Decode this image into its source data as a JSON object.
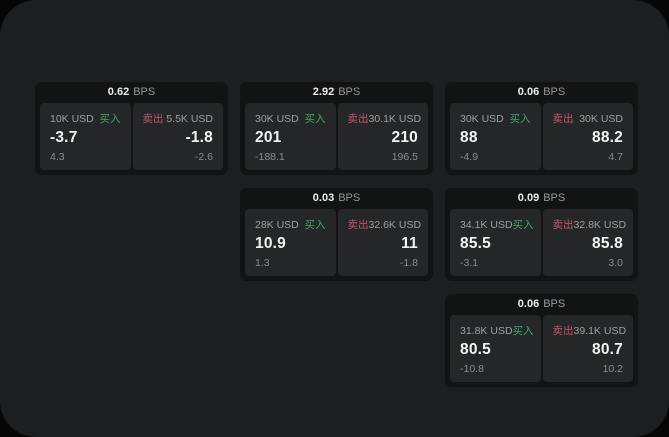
{
  "page": {
    "bps_suffix": "BPS",
    "buy_label": "买入",
    "sell_label": "卖出",
    "colors": {
      "buy": "#44a567",
      "sell": "#c4566a",
      "surface": "#1d1e1f",
      "card": "#121313",
      "panel": "#242628"
    }
  },
  "cards": [
    {
      "bps": "0.62",
      "row": 1,
      "col": 1,
      "buy": {
        "amount": "10K USD",
        "value": "-3.7",
        "sub": "4.3"
      },
      "sell": {
        "amount": "5.5K USD",
        "value": "-1.8",
        "sub": "-2.6"
      }
    },
    {
      "bps": "2.92",
      "row": 1,
      "col": 2,
      "buy": {
        "amount": "30K USD",
        "value": "201",
        "sub": "-188.1"
      },
      "sell": {
        "amount": "30.1K USD",
        "value": "210",
        "sub": "196.5"
      }
    },
    {
      "bps": "0.06",
      "row": 1,
      "col": 3,
      "buy": {
        "amount": "30K USD",
        "value": "88",
        "sub": "-4.9"
      },
      "sell": {
        "amount": "30K USD",
        "value": "88.2",
        "sub": "4.7"
      }
    },
    {
      "bps": "0.03",
      "row": 2,
      "col": 2,
      "buy": {
        "amount": "28K USD",
        "value": "10.9",
        "sub": "1.3"
      },
      "sell": {
        "amount": "32.6K USD",
        "value": "11",
        "sub": "-1.8"
      }
    },
    {
      "bps": "0.09",
      "row": 2,
      "col": 3,
      "buy": {
        "amount": "34.1K USD",
        "value": "85.5",
        "sub": "-3.1"
      },
      "sell": {
        "amount": "32.8K USD",
        "value": "85.8",
        "sub": "3.0"
      }
    },
    {
      "bps": "0.06",
      "row": 3,
      "col": 3,
      "buy": {
        "amount": "31.8K USD",
        "value": "80.5",
        "sub": "-10.8"
      },
      "sell": {
        "amount": "39.1K USD",
        "value": "80.7",
        "sub": "10.2"
      }
    }
  ]
}
